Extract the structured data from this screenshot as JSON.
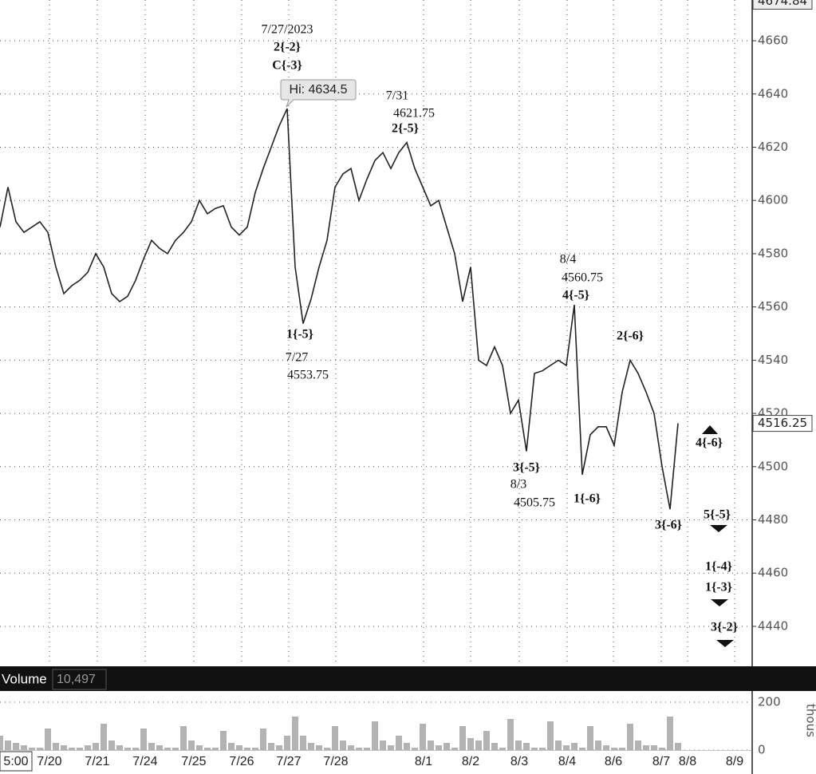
{
  "chart_data": {
    "type": "line",
    "color": "#222",
    "values": [
      4590,
      4605,
      4592,
      4588,
      4590,
      4592,
      4588,
      4575,
      4565,
      4568,
      4570,
      4573,
      4580,
      4575,
      4565,
      4562,
      4564,
      4570,
      4578,
      4585,
      4582,
      4580,
      4585,
      4588,
      4592,
      4600,
      4595,
      4597,
      4598,
      4590,
      4587,
      4590,
      4603,
      4612,
      4620,
      4628,
      4634.5,
      4575,
      4553.75,
      4563,
      4575,
      4585,
      4605,
      4610,
      4612,
      4600,
      4608,
      4615,
      4618,
      4612,
      4618,
      4621.75,
      4612,
      4605,
      4598,
      4600,
      4590,
      4580,
      4562,
      4575,
      4540,
      4538,
      4545,
      4538,
      4520,
      4525,
      4505.75,
      4535,
      4536,
      4538,
      4540,
      4538,
      4560.75,
      4497,
      4512,
      4515,
      4515,
      4508,
      4528,
      4540,
      4535,
      4528,
      4520,
      4500,
      4484,
      4516.25
    ],
    "ylim": [
      4426.5,
      4675.3
    ],
    "yticks": [
      4440,
      4460,
      4480,
      4500,
      4520,
      4540,
      4560,
      4580,
      4600,
      4620,
      4640,
      4660
    ],
    "axis_top": 4674.84,
    "last": 4516.25,
    "grid": true,
    "x_labels": [
      "5:00",
      "7/20",
      "7/21",
      "7/24",
      "7/25",
      "7/26",
      "7/27",
      "7/28",
      "8/1",
      "8/2",
      "8/3",
      "8/4",
      "8/6",
      "8/7",
      "8/8",
      "8/9"
    ],
    "callout": "Hi: 4634.5",
    "annotations": [
      {
        "lines": [
          "7/27/2023",
          "2{-2}",
          "C{-3}"
        ]
      },
      {
        "lines": [
          "7/31",
          "4621.75",
          "2{-5}"
        ]
      },
      {
        "lines": [
          "1{-5}",
          "7/27",
          "4553.75"
        ]
      },
      {
        "lines": [
          "8/4",
          "4560.75",
          "4{-5}"
        ]
      },
      {
        "lines": [
          "2{-6}"
        ]
      },
      {
        "lines": [
          "3{-5}",
          "8/3",
          "4505.75"
        ]
      },
      {
        "lines": [
          "1{-6}"
        ]
      },
      {
        "lines": [
          "3{-6}"
        ]
      },
      {
        "lines": [
          "4{-6}"
        ]
      },
      {
        "lines": [
          "5{-5}"
        ]
      },
      {
        "lines": [
          "1{-4}",
          "1{-3}"
        ]
      },
      {
        "lines": [
          "3{-2}"
        ]
      }
    ],
    "volume": {
      "type": "bar",
      "title": "Volume",
      "last": {
        "value": 10497,
        "label": "10,497"
      },
      "unit": "thous",
      "color": "#b3b3b3",
      "values": [
        60,
        40,
        30,
        20,
        10,
        10,
        90,
        30,
        20,
        10,
        10,
        20,
        30,
        110,
        40,
        20,
        10,
        10,
        90,
        30,
        20,
        10,
        10,
        100,
        40,
        20,
        10,
        10,
        80,
        30,
        20,
        10,
        10,
        90,
        30,
        20,
        60,
        140,
        60,
        30,
        20,
        10,
        100,
        40,
        20,
        10,
        10,
        120,
        40,
        20,
        60,
        30,
        10,
        110,
        40,
        20,
        30,
        10,
        100,
        50,
        40,
        80,
        30,
        10,
        130,
        40,
        30,
        10,
        10,
        120,
        40,
        20,
        30,
        10,
        100,
        40,
        20,
        10,
        10,
        110,
        40,
        20,
        20,
        10,
        140,
        30
      ],
      "ylim": [
        0,
        240
      ],
      "yticks": [
        0,
        200
      ]
    }
  }
}
